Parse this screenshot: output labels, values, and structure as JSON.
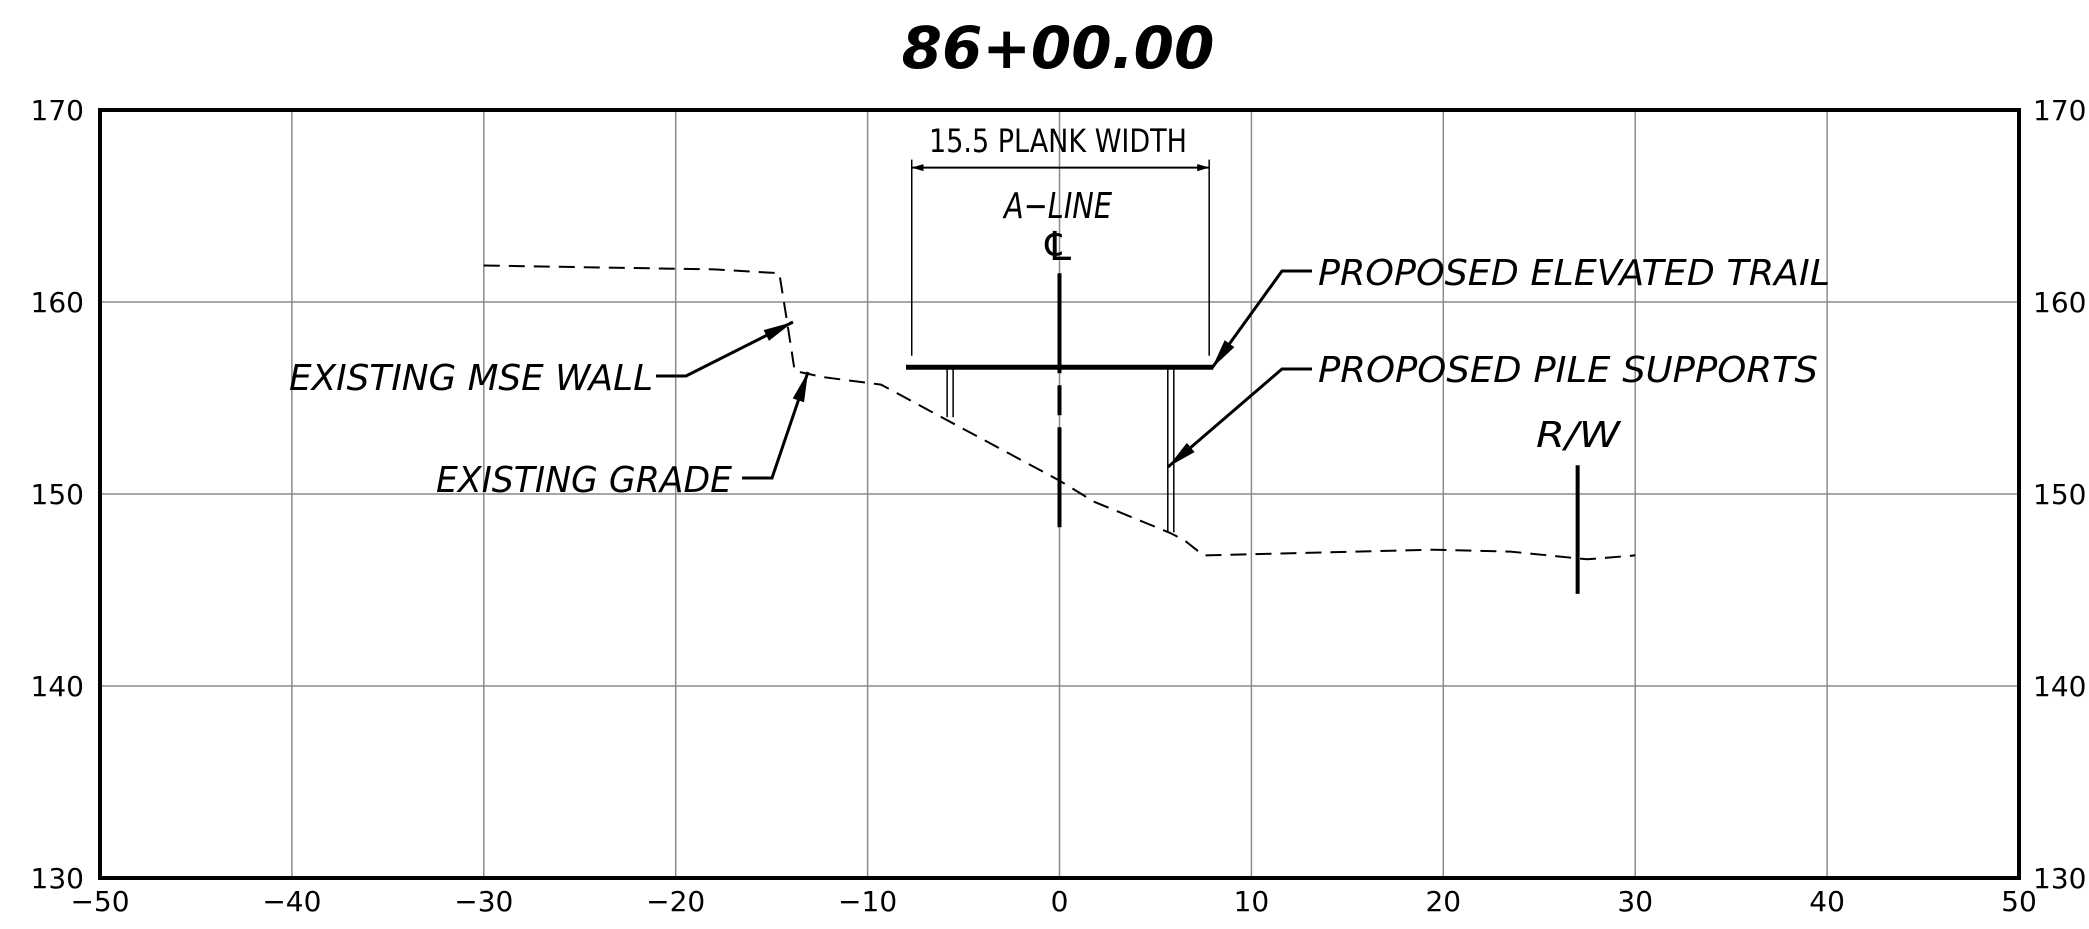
{
  "title": "86+00.00",
  "axes": {
    "x_ticks": [
      "−50",
      "−40",
      "−30",
      "−20",
      "−10",
      "0",
      "10",
      "20",
      "30",
      "40",
      "50"
    ],
    "y_ticks": [
      "130",
      "140",
      "150",
      "160",
      "170"
    ]
  },
  "labels": {
    "plank_width": "15.5 PLANK WIDTH",
    "a_line": "A−LINE",
    "centerline_symbol": "℄",
    "proposed_elevated_trail": "PROPOSED ELEVATED TRAIL",
    "proposed_pile_supports": "PROPOSED PILE SUPPORTS",
    "row": "R/W",
    "existing_mse_wall": "EXISTING MSE WALL",
    "existing_grade": "EXISTING GRADE"
  },
  "chart_data": {
    "type": "line",
    "xlim": [
      -50,
      50
    ],
    "ylim": [
      130,
      170
    ],
    "grid": true,
    "x_ticks": [
      -50,
      -40,
      -30,
      -20,
      -10,
      0,
      10,
      20,
      30,
      40,
      50
    ],
    "y_ticks": [
      130,
      140,
      150,
      160,
      170
    ],
    "series": [
      {
        "style": "dashed",
        "x": [
          -30,
          -18,
          -14.6,
          -14.2,
          -13.8,
          -13.3,
          -12.4,
          -9.3,
          0,
          1.8,
          5.7,
          6.5,
          7.5,
          19.5,
          23.5,
          27.5,
          30
        ],
        "y": [
          161.9,
          161.7,
          161.5,
          159,
          156.4,
          156.3,
          156.1,
          155.7,
          150.7,
          149.6,
          148.0,
          147.6,
          146.8,
          147.1,
          147.0,
          146.6,
          146.8
        ]
      }
    ],
    "elements": {
      "trail_deck": {
        "x": [
          -8,
          8
        ],
        "y": 156.6
      },
      "pile_left": {
        "x": -5.7,
        "y_top": 156.6,
        "y_bottom": 154.0
      },
      "pile_right": {
        "x": 5.8,
        "y_top": 156.6,
        "y_bottom": 148.0
      },
      "centerline": {
        "x": 0,
        "y_top": 161.5,
        "y_bottom": 148.2
      },
      "row_line": {
        "x": 27,
        "y_top": 151.5,
        "y_bottom": 144.8
      },
      "plank_dimension": {
        "x": [
          -7.7,
          7.8
        ],
        "y": 167.0,
        "ext_bottom": 157.2
      }
    }
  }
}
